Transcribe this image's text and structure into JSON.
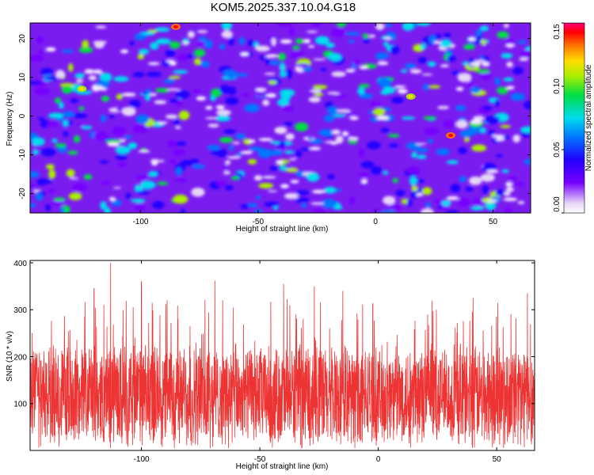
{
  "chart_title": "KOM5.2025.337.10.04.G18",
  "chart_data": [
    {
      "type": "heatmap",
      "title": "KOM5.2025.337.10.04.G18",
      "xlabel": "Height of straight line (km)",
      "ylabel": "Frequency (Hz)",
      "xlim": [
        -147,
        66
      ],
      "ylim": [
        -25,
        24
      ],
      "x_ticks": [
        -100,
        -50,
        0,
        50
      ],
      "y_ticks": [
        -20,
        -10,
        0,
        10,
        20
      ],
      "x_tick_labels": [
        "-100",
        "-50",
        "0",
        "50"
      ],
      "y_tick_labels": [
        "-20",
        "-10",
        "0",
        "10",
        "20"
      ],
      "colorbar": {
        "label": "Normalized spectral amplitude",
        "range": [
          0.0,
          0.15
        ],
        "ticks": [
          0.0,
          0.05,
          0.1,
          0.15
        ],
        "tick_labels": [
          "0.00",
          "0.05",
          "0.10",
          "0.15"
        ],
        "colors": [
          "#ffffff",
          "#e6d6f6",
          "#7700ff",
          "#2200ff",
          "#0077ff",
          "#00ddee",
          "#00dd44",
          "#aaee00",
          "#ffdd00",
          "#ff7700",
          "#ff0000",
          "#ff0077"
        ]
      },
      "peaks": [
        {
          "x": -85,
          "y": 23,
          "value": 0.15
        },
        {
          "x": 32,
          "y": -5,
          "value": 0.14
        },
        {
          "x": -125,
          "y": 7,
          "value": 0.09
        },
        {
          "x": 15,
          "y": 5,
          "value": 0.1
        }
      ]
    },
    {
      "type": "line",
      "title": "",
      "xlabel": "Height of straight line (km)",
      "ylabel": "SNR (10 * v/v)",
      "xlim": [
        -147,
        66
      ],
      "ylim": [
        0,
        405
      ],
      "x_ticks": [
        -100,
        -50,
        0,
        50
      ],
      "y_ticks": [
        100,
        200,
        300,
        400
      ],
      "x_tick_labels": [
        "-100",
        "-50",
        "0",
        "50"
      ],
      "y_tick_labels": [
        "100",
        "200",
        "300",
        "400"
      ],
      "series": [
        {
          "name": "SNR",
          "color": "#ee3333",
          "mean": 115,
          "min": 5,
          "max": 400,
          "peaks": [
            {
              "x": -113,
              "y": 400
            },
            {
              "x": -120,
              "y": 345
            },
            {
              "x": -100,
              "y": 360
            },
            {
              "x": -69,
              "y": 362
            },
            {
              "x": -40,
              "y": 355
            },
            {
              "x": -27,
              "y": 350
            },
            {
              "x": -15,
              "y": 340
            },
            {
              "x": 40,
              "y": 325
            },
            {
              "x": 63,
              "y": 335
            }
          ]
        }
      ]
    }
  ]
}
